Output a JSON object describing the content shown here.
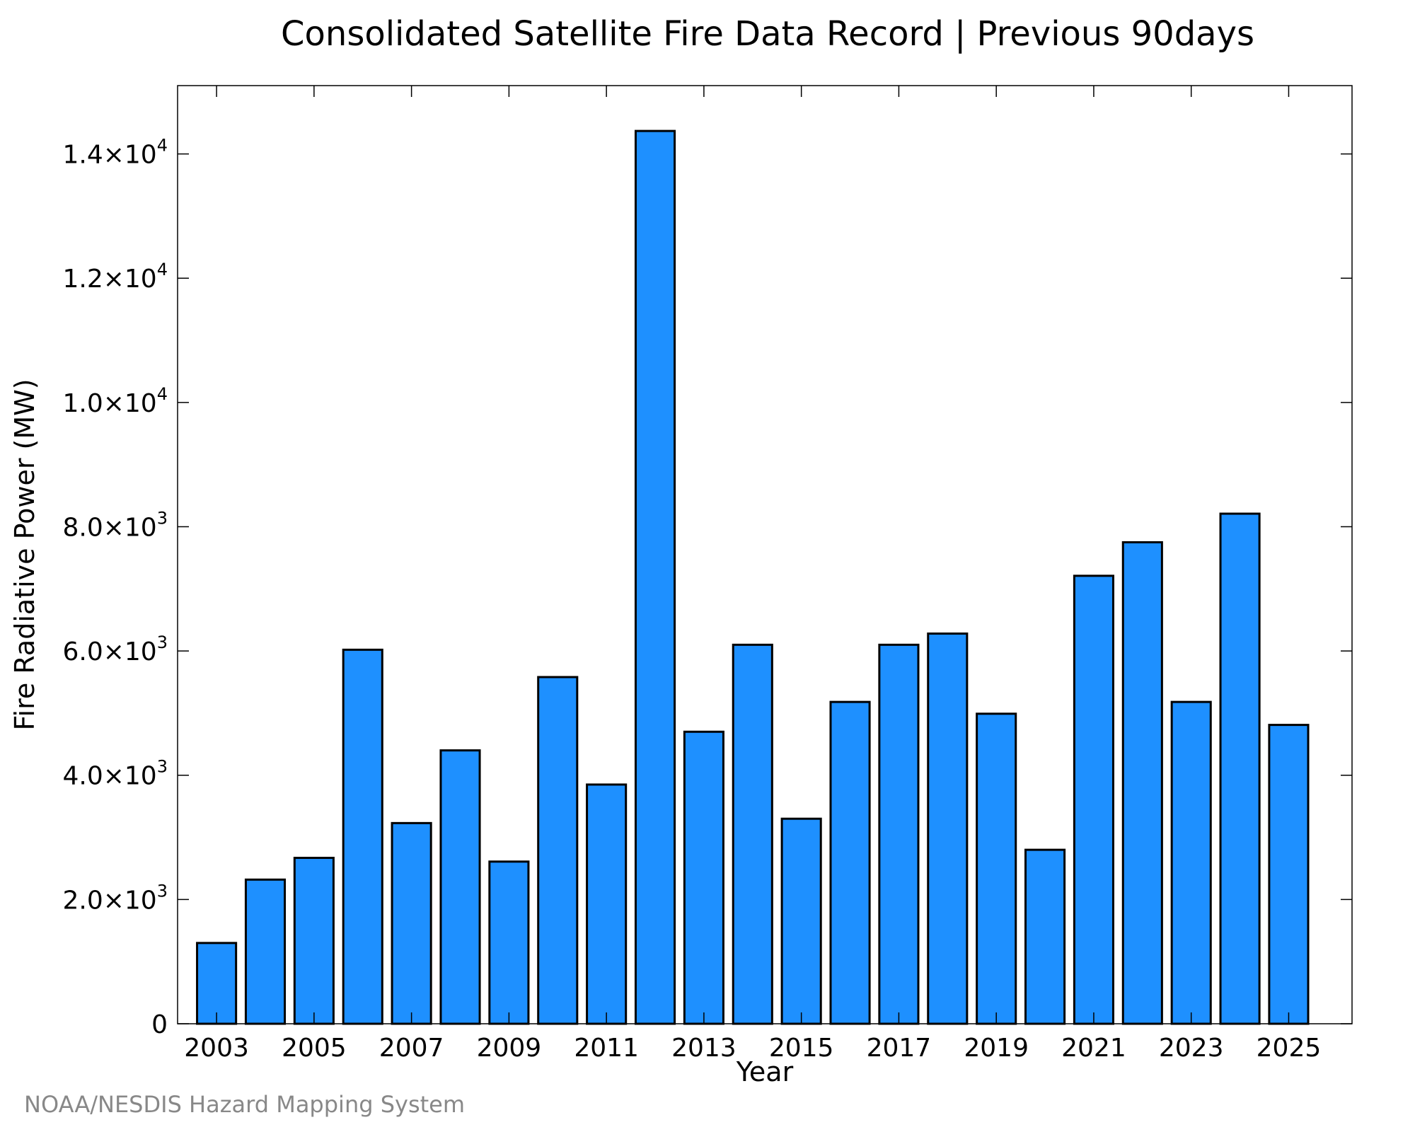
{
  "credit": "NOAA/NESDIS Hazard Mapping System",
  "colors": {
    "bar_fill": "#1e90ff",
    "bar_stroke": "#000000",
    "credit": "#888888"
  },
  "chart_data": {
    "type": "bar",
    "title": "Consolidated Satellite Fire Data Record | Previous 90days",
    "xlabel": "Year",
    "ylabel": "Fire Radiative Power (MW)",
    "categories": [
      "2003",
      "2004",
      "2005",
      "2006",
      "2007",
      "2008",
      "2009",
      "2010",
      "2011",
      "2012",
      "2013",
      "2014",
      "2015",
      "2016",
      "2017",
      "2018",
      "2019",
      "2020",
      "2021",
      "2022",
      "2023",
      "2024",
      "2025"
    ],
    "values": [
      1300,
      2320,
      2670,
      6020,
      3230,
      4400,
      2610,
      5580,
      3850,
      14370,
      4700,
      6100,
      3300,
      5180,
      6100,
      6280,
      4990,
      2800,
      7210,
      7750,
      5180,
      8210,
      4810
    ],
    "xlim": [
      2002.2,
      2026.3
    ],
    "ylim": [
      0,
      15100
    ],
    "x_ticks": [
      {
        "label": "2003",
        "value": 2003
      },
      {
        "label": "2005",
        "value": 2005
      },
      {
        "label": "2007",
        "value": 2007
      },
      {
        "label": "2009",
        "value": 2009
      },
      {
        "label": "2011",
        "value": 2011
      },
      {
        "label": "2013",
        "value": 2013
      },
      {
        "label": "2015",
        "value": 2015
      },
      {
        "label": "2017",
        "value": 2017
      },
      {
        "label": "2019",
        "value": 2019
      },
      {
        "label": "2021",
        "value": 2021
      },
      {
        "label": "2023",
        "value": 2023
      },
      {
        "label": "2025",
        "value": 2025
      }
    ],
    "y_ticks": [
      {
        "value": 0,
        "mantissa": "0",
        "exponent": ""
      },
      {
        "value": 2000,
        "mantissa": "2.0×10",
        "exponent": "3"
      },
      {
        "value": 4000,
        "mantissa": "4.0×10",
        "exponent": "3"
      },
      {
        "value": 6000,
        "mantissa": "6.0×10",
        "exponent": "3"
      },
      {
        "value": 8000,
        "mantissa": "8.0×10",
        "exponent": "3"
      },
      {
        "value": 10000,
        "mantissa": "1.0×10",
        "exponent": "4"
      },
      {
        "value": 12000,
        "mantissa": "1.2×10",
        "exponent": "4"
      },
      {
        "value": 14000,
        "mantissa": "1.4×10",
        "exponent": "4"
      }
    ],
    "grid": false,
    "legend": "none"
  }
}
